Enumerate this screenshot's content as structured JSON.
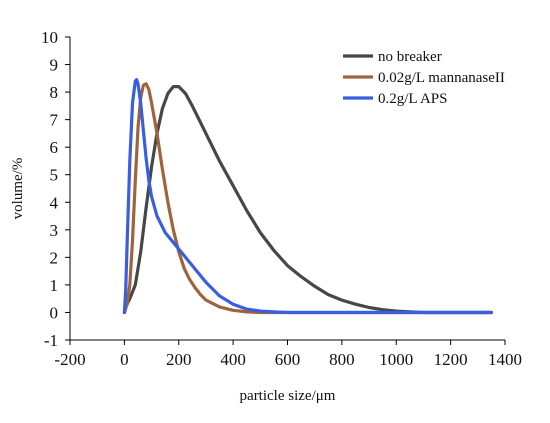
{
  "chart_data": {
    "type": "line",
    "title": "",
    "xlabel": "particle size/μm",
    "ylabel": "volume/%",
    "xlim": [
      -200,
      1400
    ],
    "ylim": [
      -1,
      10
    ],
    "xticks": [
      -200,
      0,
      200,
      400,
      600,
      800,
      1000,
      1200,
      1400
    ],
    "yticks": [
      -1,
      0,
      1,
      2,
      3,
      4,
      5,
      6,
      7,
      8,
      9,
      10
    ],
    "grid": false,
    "legend_position": "top-right",
    "series": [
      {
        "name": "no breaker",
        "color": "#474747",
        "points": [
          [
            0,
            0
          ],
          [
            5,
            0.2
          ],
          [
            20,
            0.5
          ],
          [
            40,
            1.0
          ],
          [
            60,
            2.2
          ],
          [
            80,
            3.8
          ],
          [
            100,
            5.3
          ],
          [
            120,
            6.5
          ],
          [
            140,
            7.4
          ],
          [
            160,
            7.95
          ],
          [
            180,
            8.2
          ],
          [
            200,
            8.2
          ],
          [
            225,
            7.95
          ],
          [
            250,
            7.5
          ],
          [
            300,
            6.5
          ],
          [
            350,
            5.5
          ],
          [
            400,
            4.6
          ],
          [
            450,
            3.7
          ],
          [
            500,
            2.9
          ],
          [
            550,
            2.25
          ],
          [
            600,
            1.7
          ],
          [
            650,
            1.3
          ],
          [
            700,
            0.95
          ],
          [
            750,
            0.65
          ],
          [
            800,
            0.45
          ],
          [
            850,
            0.3
          ],
          [
            900,
            0.18
          ],
          [
            950,
            0.1
          ],
          [
            1000,
            0.05
          ],
          [
            1050,
            0.02
          ],
          [
            1100,
            0
          ],
          [
            1350,
            0
          ]
        ]
      },
      {
        "name": "0.02g/L mannanaseII",
        "color": "#a0643c",
        "points": [
          [
            0,
            0
          ],
          [
            10,
            0.3
          ],
          [
            20,
            1.0
          ],
          [
            30,
            2.6
          ],
          [
            40,
            4.8
          ],
          [
            50,
            6.7
          ],
          [
            60,
            7.8
          ],
          [
            70,
            8.25
          ],
          [
            80,
            8.3
          ],
          [
            90,
            8.1
          ],
          [
            100,
            7.6
          ],
          [
            120,
            6.5
          ],
          [
            140,
            5.2
          ],
          [
            160,
            4.0
          ],
          [
            180,
            3.0
          ],
          [
            200,
            2.2
          ],
          [
            220,
            1.6
          ],
          [
            240,
            1.2
          ],
          [
            260,
            0.9
          ],
          [
            280,
            0.65
          ],
          [
            300,
            0.45
          ],
          [
            350,
            0.2
          ],
          [
            400,
            0.08
          ],
          [
            450,
            0.02
          ],
          [
            500,
            0
          ],
          [
            1350,
            0
          ]
        ]
      },
      {
        "name": "0.2g/L APS",
        "color": "#3a5ee0",
        "points": [
          [
            0,
            0
          ],
          [
            5,
            0.8
          ],
          [
            10,
            2.5
          ],
          [
            20,
            5.5
          ],
          [
            30,
            7.6
          ],
          [
            40,
            8.4
          ],
          [
            45,
            8.45
          ],
          [
            50,
            8.3
          ],
          [
            60,
            7.6
          ],
          [
            70,
            6.6
          ],
          [
            80,
            5.6
          ],
          [
            90,
            4.8
          ],
          [
            100,
            4.2
          ],
          [
            120,
            3.5
          ],
          [
            150,
            2.9
          ],
          [
            200,
            2.3
          ],
          [
            250,
            1.7
          ],
          [
            300,
            1.1
          ],
          [
            350,
            0.6
          ],
          [
            400,
            0.3
          ],
          [
            450,
            0.12
          ],
          [
            500,
            0.05
          ],
          [
            550,
            0.02
          ],
          [
            600,
            0
          ],
          [
            1350,
            0
          ]
        ]
      }
    ]
  }
}
